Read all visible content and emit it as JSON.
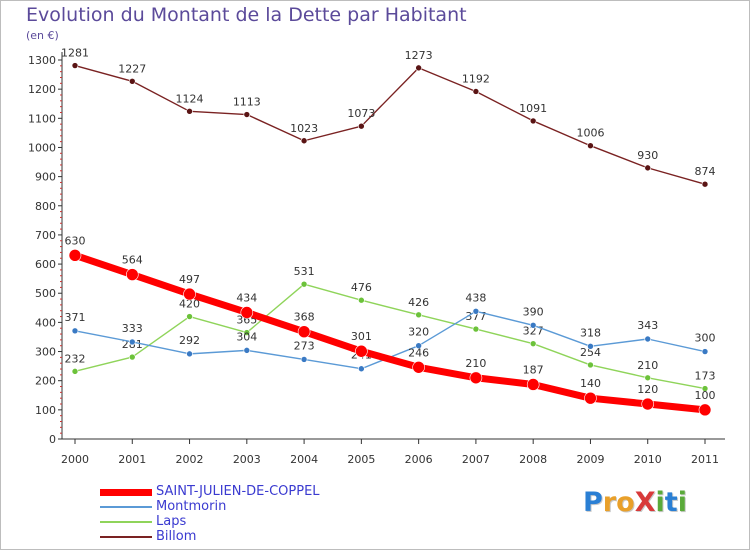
{
  "header": {
    "title": "Evolution du Montant de la Dette par Habitant",
    "subtitle": "(en €)"
  },
  "logo": {
    "text": "ProXiti",
    "letters": [
      {
        "ch": "P",
        "color": "#2a7fd4"
      },
      {
        "ch": "r",
        "color": "#e9a02a"
      },
      {
        "ch": "o",
        "color": "#e9a02a"
      },
      {
        "ch": "X",
        "color": "#d83a3a"
      },
      {
        "ch": "i",
        "color": "#5aaa3a"
      },
      {
        "ch": "t",
        "color": "#2a7fd4"
      },
      {
        "ch": "i",
        "color": "#5aaa3a"
      }
    ]
  },
  "chart_data": {
    "type": "line",
    "title": "Evolution du Montant de la Dette par Habitant",
    "subtitle": "(en €)",
    "x": [
      "2000",
      "2001",
      "2002",
      "2003",
      "2004",
      "2005",
      "2006",
      "2007",
      "2008",
      "2009",
      "2010",
      "2011"
    ],
    "ylim": [
      0,
      1300
    ],
    "yticks": [
      0,
      100,
      200,
      300,
      400,
      500,
      600,
      700,
      800,
      900,
      1000,
      1100,
      1200,
      1300
    ],
    "grid": false,
    "legend_position": "bottom-left",
    "series": [
      {
        "name": "Billom",
        "color": "#7a2222",
        "values": [
          1281,
          1227,
          1124,
          1113,
          1023,
          1073,
          1273,
          1192,
          1091,
          1006,
          930,
          874
        ]
      },
      {
        "name": "Laps",
        "color": "#8fd45a",
        "values": [
          232,
          281,
          420,
          365,
          531,
          476,
          426,
          377,
          327,
          254,
          210,
          173
        ]
      },
      {
        "name": "Montmorin",
        "color": "#5b9ad6",
        "values": [
          371,
          333,
          292,
          304,
          273,
          241,
          320,
          438,
          390,
          318,
          343,
          300
        ]
      },
      {
        "name": "SAINT-JULIEN-DE-COPPEL",
        "color": "#ff0000",
        "values": [
          630,
          564,
          497,
          434,
          368,
          301,
          246,
          210,
          187,
          140,
          120,
          100
        ]
      }
    ],
    "legend_order": [
      "SAINT-JULIEN-DE-COPPEL",
      "Montmorin",
      "Laps",
      "Billom"
    ]
  }
}
